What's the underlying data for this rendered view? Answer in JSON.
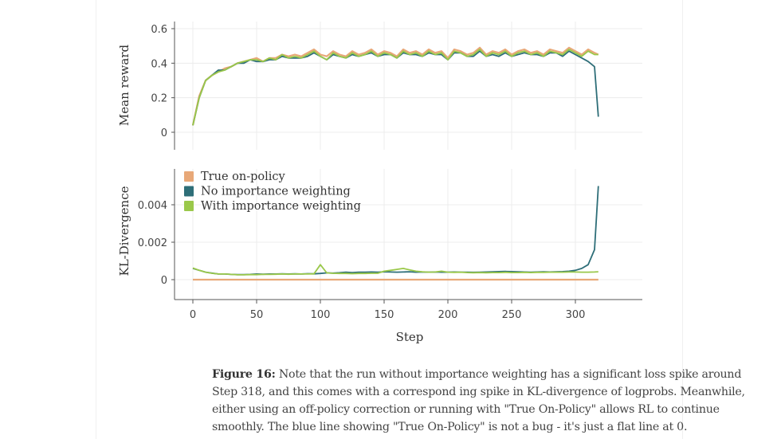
{
  "caption": {
    "label": "Figure 16:",
    "text": " Note that the run without importance weighting has a significant loss spike around Step 318, and this comes with a correspond ing spike in KL-divergence of logprobs. Meanwhile, either using an off-policy correction or running with \"True On-Policy\" allows RL to continue smoothly. The blue line showing \"True On-Policy\" is not a bug - it's just a flat line at 0."
  },
  "chart_data": [
    {
      "type": "line",
      "ylabel": "Mean reward",
      "ylim": [
        -0.05,
        0.63
      ],
      "yticks": [
        "0",
        "0.2",
        "0.4",
        "0.6"
      ],
      "ytick_values": [
        0,
        0.2,
        0.4,
        0.6
      ],
      "grid": true,
      "x": [
        0,
        5,
        10,
        15,
        20,
        25,
        30,
        35,
        40,
        45,
        50,
        55,
        60,
        65,
        70,
        75,
        80,
        85,
        90,
        95,
        100,
        105,
        110,
        115,
        120,
        125,
        130,
        135,
        140,
        145,
        150,
        155,
        160,
        165,
        170,
        175,
        180,
        185,
        190,
        195,
        200,
        205,
        210,
        215,
        220,
        225,
        230,
        235,
        240,
        245,
        250,
        255,
        260,
        265,
        270,
        275,
        280,
        285,
        290,
        295,
        300,
        305,
        310,
        315,
        318
      ],
      "series": [
        {
          "name": "True on-policy",
          "color": "#E8A878",
          "values": [
            0.04,
            0.21,
            0.3,
            0.33,
            0.35,
            0.37,
            0.38,
            0.4,
            0.41,
            0.42,
            0.43,
            0.41,
            0.43,
            0.43,
            0.45,
            0.44,
            0.45,
            0.44,
            0.46,
            0.48,
            0.45,
            0.44,
            0.47,
            0.45,
            0.44,
            0.47,
            0.45,
            0.46,
            0.48,
            0.45,
            0.47,
            0.46,
            0.44,
            0.48,
            0.46,
            0.47,
            0.45,
            0.48,
            0.46,
            0.47,
            0.43,
            0.48,
            0.47,
            0.45,
            0.46,
            0.49,
            0.45,
            0.47,
            0.46,
            0.48,
            0.45,
            0.47,
            0.48,
            0.46,
            0.47,
            0.45,
            0.48,
            0.47,
            0.46,
            0.49,
            0.47,
            0.45,
            0.48,
            0.46,
            0.45
          ]
        },
        {
          "name": "No importance weighting",
          "color": "#2E6E78",
          "values": [
            0.04,
            0.2,
            0.3,
            0.33,
            0.36,
            0.36,
            0.38,
            0.4,
            0.4,
            0.42,
            0.41,
            0.41,
            0.42,
            0.42,
            0.44,
            0.43,
            0.43,
            0.43,
            0.44,
            0.46,
            0.44,
            0.42,
            0.45,
            0.44,
            0.43,
            0.45,
            0.44,
            0.45,
            0.46,
            0.44,
            0.45,
            0.45,
            0.43,
            0.46,
            0.45,
            0.45,
            0.44,
            0.46,
            0.45,
            0.45,
            0.42,
            0.46,
            0.46,
            0.44,
            0.44,
            0.47,
            0.44,
            0.45,
            0.44,
            0.46,
            0.44,
            0.45,
            0.46,
            0.45,
            0.45,
            0.44,
            0.46,
            0.46,
            0.44,
            0.47,
            0.45,
            0.43,
            0.41,
            0.38,
            0.09
          ]
        },
        {
          "name": "With importance weighting",
          "color": "#9AC84A",
          "values": [
            0.04,
            0.2,
            0.3,
            0.33,
            0.35,
            0.36,
            0.38,
            0.4,
            0.41,
            0.42,
            0.42,
            0.41,
            0.43,
            0.42,
            0.45,
            0.43,
            0.44,
            0.43,
            0.45,
            0.47,
            0.44,
            0.42,
            0.46,
            0.44,
            0.43,
            0.46,
            0.44,
            0.45,
            0.47,
            0.44,
            0.46,
            0.45,
            0.43,
            0.47,
            0.45,
            0.46,
            0.44,
            0.47,
            0.45,
            0.46,
            0.42,
            0.47,
            0.46,
            0.44,
            0.45,
            0.48,
            0.44,
            0.46,
            0.45,
            0.47,
            0.44,
            0.46,
            0.47,
            0.45,
            0.46,
            0.44,
            0.47,
            0.46,
            0.45,
            0.48,
            0.46,
            0.44,
            0.47,
            0.45,
            0.45
          ]
        }
      ]
    },
    {
      "type": "line",
      "ylabel": "KL-Divergence",
      "xlabel": "Step",
      "ylim": [
        -0.0005,
        0.0058
      ],
      "yticks": [
        "0",
        "0.002",
        "0.004"
      ],
      "ytick_values": [
        0,
        0.002,
        0.004
      ],
      "xlim": [
        -5,
        350
      ],
      "xticks": [
        "0",
        "50",
        "100",
        "150",
        "200",
        "250",
        "300"
      ],
      "xtick_values": [
        0,
        50,
        100,
        150,
        200,
        250,
        300
      ],
      "grid": true,
      "legend": "top-left",
      "x": [
        0,
        5,
        10,
        15,
        20,
        25,
        30,
        35,
        40,
        45,
        50,
        55,
        60,
        65,
        70,
        75,
        80,
        85,
        90,
        95,
        100,
        105,
        110,
        115,
        120,
        125,
        130,
        135,
        140,
        145,
        150,
        155,
        160,
        165,
        170,
        175,
        180,
        185,
        190,
        195,
        200,
        205,
        210,
        215,
        220,
        225,
        230,
        235,
        240,
        245,
        250,
        255,
        260,
        265,
        270,
        275,
        280,
        285,
        290,
        295,
        300,
        305,
        310,
        315,
        318
      ],
      "series": [
        {
          "name": "True on-policy",
          "color": "#E8A878",
          "values": [
            0,
            0,
            0,
            0,
            0,
            0,
            0,
            0,
            0,
            0,
            0,
            0,
            0,
            0,
            0,
            0,
            0,
            0,
            0,
            0,
            0,
            0,
            0,
            0,
            0,
            0,
            0,
            0,
            0,
            0,
            0,
            0,
            0,
            0,
            0,
            0,
            0,
            0,
            0,
            0,
            0,
            0,
            0,
            0,
            0,
            0,
            0,
            0,
            0,
            0,
            0,
            0,
            0,
            0,
            0,
            0,
            0,
            0,
            0,
            0,
            0,
            0,
            0,
            0,
            0
          ]
        },
        {
          "name": "No importance weighting",
          "color": "#2E6E78",
          "values": [
            0.0006,
            0.0005,
            0.0004,
            0.00035,
            0.0003,
            0.0003,
            0.00028,
            0.00027,
            0.00027,
            0.00028,
            0.0003,
            0.00029,
            0.0003,
            0.0003,
            0.00031,
            0.0003,
            0.00031,
            0.0003,
            0.00032,
            0.00031,
            0.00033,
            0.00036,
            0.00035,
            0.00037,
            0.0004,
            0.00038,
            0.0004,
            0.0004,
            0.00041,
            0.0004,
            0.00042,
            0.00041,
            0.0004,
            0.00041,
            0.00042,
            0.0004,
            0.00041,
            0.0004,
            0.00041,
            0.0004,
            0.0004,
            0.00041,
            0.0004,
            0.0004,
            0.00039,
            0.0004,
            0.00041,
            0.00042,
            0.00043,
            0.00044,
            0.00043,
            0.00042,
            0.00041,
            0.0004,
            0.00041,
            0.00042,
            0.00041,
            0.00042,
            0.00043,
            0.00045,
            0.0005,
            0.0006,
            0.0008,
            0.0016,
            0.005
          ]
        },
        {
          "name": "With importance weighting",
          "color": "#9AC84A",
          "values": [
            0.00062,
            0.0005,
            0.0004,
            0.00034,
            0.0003,
            0.0003,
            0.00028,
            0.00026,
            0.00026,
            0.00027,
            0.00027,
            0.00028,
            0.00028,
            0.00029,
            0.0003,
            0.00029,
            0.0003,
            0.0003,
            0.0003,
            0.00031,
            0.0008,
            0.00036,
            0.00034,
            0.00033,
            0.00033,
            0.00032,
            0.00033,
            0.00033,
            0.00034,
            0.00034,
            0.00045,
            0.0005,
            0.00055,
            0.0006,
            0.00052,
            0.00045,
            0.00042,
            0.0004,
            0.00041,
            0.00045,
            0.0004,
            0.00039,
            0.0004,
            0.00038,
            0.00037,
            0.00038,
            0.00037,
            0.00038,
            0.00038,
            0.00039,
            0.00038,
            0.00038,
            0.00039,
            0.00038,
            0.00039,
            0.00039,
            0.0004,
            0.0004,
            0.0004,
            0.00041,
            0.00041,
            0.0004,
            0.0004,
            0.00041,
            0.00042
          ]
        }
      ]
    }
  ]
}
